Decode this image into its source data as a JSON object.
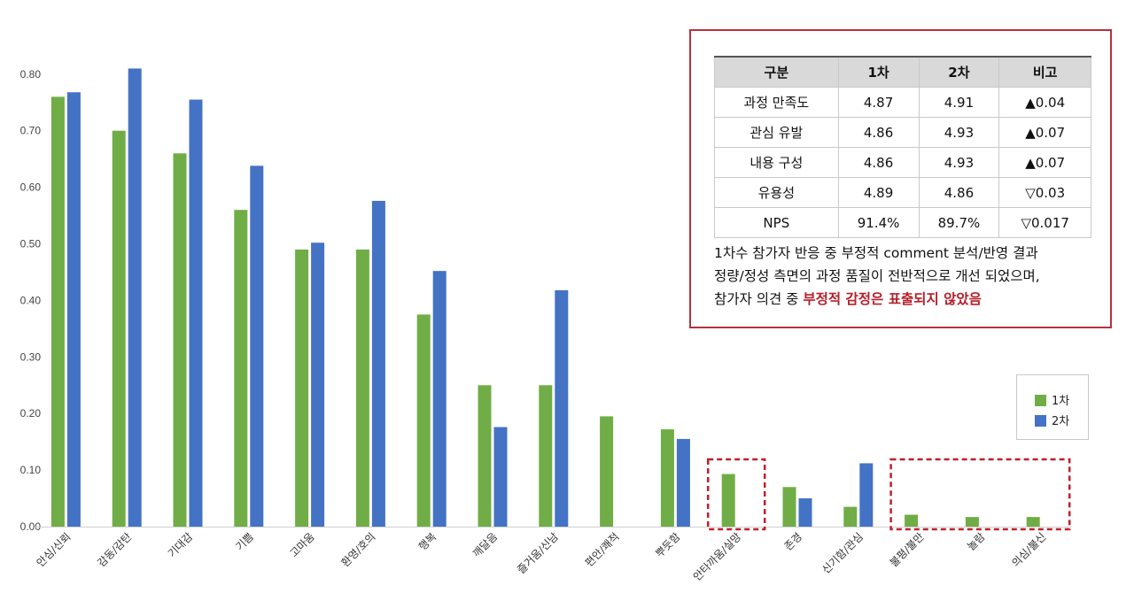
{
  "chart_data": {
    "type": "bar",
    "categories": [
      "안심/신뢰",
      "감동/감탄",
      "기대감",
      "기쁨",
      "고마움",
      "환영/호의",
      "행복",
      "깨달음",
      "즐거움/신남",
      "편안/쾌적",
      "뿌듯함",
      "안타까움/실망",
      "존경",
      "신기함/관심",
      "불평/불만",
      "놀람",
      "의심/불신"
    ],
    "series": [
      {
        "name": "1차",
        "color": "#70ad47",
        "values": [
          0.76,
          0.7,
          0.66,
          0.56,
          0.49,
          0.49,
          0.375,
          0.25,
          0.25,
          0.195,
          0.172,
          0.093,
          0.07,
          0.035,
          0.021,
          0.017,
          0.017
        ]
      },
      {
        "name": "2차",
        "color": "#4472c4",
        "values": [
          0.768,
          0.81,
          0.755,
          0.638,
          0.502,
          0.576,
          0.452,
          0.176,
          0.418,
          null,
          0.155,
          null,
          0.05,
          0.112,
          null,
          null,
          null
        ]
      }
    ],
    "yticks": [
      "0.00",
      "0.10",
      "0.20",
      "0.30",
      "0.40",
      "0.50",
      "0.60",
      "0.70",
      "0.80"
    ],
    "ylim": [
      0,
      0.85
    ],
    "grid": false,
    "legend_position": "right"
  },
  "summary_table": {
    "headers": [
      "구분",
      "1차",
      "2차",
      "비고"
    ],
    "rows": [
      [
        "과정 만족도",
        "4.87",
        "4.91",
        "▲0.04"
      ],
      [
        "관심 유발",
        "4.86",
        "4.93",
        "▲0.07"
      ],
      [
        "내용 구성",
        "4.86",
        "4.93",
        "▲0.07"
      ],
      [
        "유용성",
        "4.89",
        "4.86",
        "▽0.03"
      ],
      [
        "NPS",
        "91.4%",
        "89.7%",
        "▽0.017"
      ]
    ]
  },
  "note": {
    "line1": "1차수 참가자 반응 중 부정적 comment 분석/반영 결과",
    "line2": "정량/정성 측면의 과정 품질이 전반적으로 개선 되었으며,",
    "line3_prefix": "참가자 의견 중 ",
    "line3_highlight": "부정적 감정은 표출되지 않았음"
  },
  "legend": {
    "series1": "1차",
    "series2": "2차"
  },
  "colors": {
    "green": "#70ad47",
    "blue": "#4472c4",
    "highlight_box": "#c0202b"
  }
}
